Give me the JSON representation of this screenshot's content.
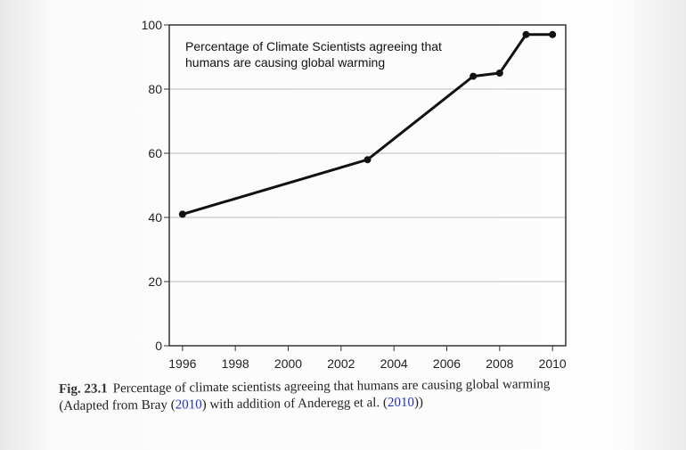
{
  "chart_data": {
    "type": "line",
    "title": "Percentage of Climate Scientists agreeing that humans are causing global warming",
    "title_lines": [
      "Percentage of Climate Scientists agreeing that",
      "humans are causing global warming"
    ],
    "x": [
      1996,
      2003,
      2007,
      2008,
      2009,
      2010
    ],
    "values": [
      41,
      58,
      84,
      85,
      97,
      97
    ],
    "xlim": [
      1995.5,
      2010.5
    ],
    "ylim": [
      0,
      100
    ],
    "xticks": [
      1996,
      1998,
      2000,
      2002,
      2004,
      2006,
      2008,
      2010
    ],
    "yticks": [
      0,
      20,
      40,
      60,
      80,
      100
    ],
    "grid": true,
    "line_color": "#111111",
    "xlabel": "",
    "ylabel": ""
  },
  "caption": {
    "label": "Fig. 23.1",
    "line1": "Percentage of climate scientists agreeing that humans are causing global warming",
    "line2_a": "(Adapted from Bray (",
    "line2_link1": "2010",
    "line2_b": ") with addition of Anderegg et al. (",
    "line2_link2": "2010",
    "line2_c": "))"
  }
}
